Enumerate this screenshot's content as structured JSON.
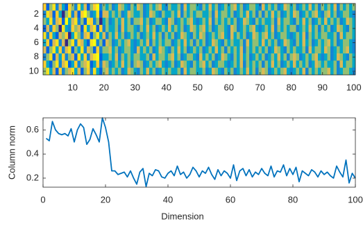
{
  "chart_data": [
    {
      "type": "heatmap",
      "colormap": [
        "#352a87",
        "#0363e1",
        "#1485d4",
        "#06a7c6",
        "#38b99e",
        "#92bf73",
        "#d9ba56",
        "#fcce2e",
        "#f5e21f",
        "#f9fb0e"
      ],
      "xlim": [
        0.5,
        100.5
      ],
      "ylim": [
        0.5,
        10.5
      ],
      "y_reversed": true,
      "xticks": [
        10,
        20,
        30,
        40,
        50,
        60,
        70,
        80,
        90,
        100
      ],
      "yticks": [
        2,
        4,
        6,
        8,
        10
      ],
      "values": [
        [
          7,
          2,
          5,
          8,
          3,
          6,
          4,
          2,
          7,
          5,
          3,
          8,
          4,
          6,
          2,
          5,
          7,
          9,
          3,
          5,
          4,
          5,
          3,
          4,
          6,
          5,
          4,
          3,
          5,
          4,
          6,
          5,
          3,
          4,
          5,
          4,
          5,
          6,
          4,
          3,
          5,
          4,
          4,
          5,
          3,
          6,
          4,
          5,
          5,
          4,
          3,
          5,
          4,
          6,
          4,
          5,
          3,
          4,
          5,
          4,
          5,
          6,
          4,
          5,
          3,
          4,
          5,
          5,
          4,
          3,
          6,
          4,
          5,
          4,
          5,
          3,
          4,
          6,
          5,
          4,
          5,
          3,
          4,
          5,
          4,
          6,
          4,
          5,
          3,
          5,
          4,
          5,
          4,
          6,
          3,
          5,
          4,
          5,
          4,
          5
        ],
        [
          3,
          8,
          6,
          2,
          7,
          4,
          1,
          5,
          8,
          3,
          6,
          2,
          7,
          9,
          5,
          3,
          4,
          8,
          2,
          6,
          6,
          4,
          5,
          4,
          5,
          3,
          4,
          6,
          5,
          4,
          4,
          5,
          3,
          4,
          6,
          5,
          4,
          3,
          5,
          4,
          4,
          5,
          4,
          6,
          3,
          5,
          4,
          5,
          4,
          5,
          5,
          4,
          4,
          5,
          3,
          6,
          4,
          5,
          5,
          4,
          5,
          3,
          4,
          5,
          4,
          6,
          4,
          5,
          3,
          5,
          3,
          5,
          4,
          6,
          4,
          5,
          3,
          4,
          5,
          4,
          6,
          5,
          3,
          4,
          5,
          4,
          5,
          6,
          4,
          3,
          5,
          6,
          4,
          5,
          3,
          4,
          5,
          5,
          4,
          3
        ],
        [
          5,
          4,
          8,
          3,
          6,
          7,
          2,
          9,
          4,
          6,
          8,
          3,
          5,
          2,
          8,
          7,
          3,
          5,
          1,
          4,
          5,
          3,
          4,
          5,
          4,
          6,
          4,
          5,
          3,
          5,
          5,
          6,
          4,
          5,
          3,
          4,
          5,
          5,
          4,
          3,
          6,
          5,
          3,
          4,
          5,
          4,
          5,
          6,
          4,
          3,
          4,
          5,
          4,
          6,
          3,
          5,
          4,
          5,
          4,
          5,
          4,
          5,
          3,
          4,
          6,
          5,
          4,
          3,
          5,
          4,
          5,
          4,
          4,
          5,
          3,
          6,
          4,
          5,
          5,
          4,
          3,
          5,
          4,
          6,
          4,
          5,
          3,
          4,
          5,
          4,
          6,
          4,
          5,
          4,
          5,
          3,
          4,
          6,
          5,
          4
        ],
        [
          2,
          6,
          3,
          7,
          5,
          1,
          8,
          4,
          3,
          7,
          5,
          6,
          2,
          8,
          4,
          6,
          8,
          2,
          7,
          3,
          5,
          4,
          4,
          5,
          3,
          6,
          4,
          5,
          5,
          4,
          3,
          5,
          4,
          6,
          4,
          5,
          3,
          4,
          5,
          4,
          6,
          4,
          5,
          4,
          5,
          3,
          4,
          6,
          5,
          4,
          5,
          6,
          4,
          5,
          3,
          4,
          5,
          5,
          4,
          3,
          6,
          5,
          3,
          4,
          5,
          4,
          5,
          6,
          4,
          3,
          4,
          5,
          4,
          6,
          3,
          5,
          4,
          5,
          4,
          5,
          5,
          3,
          4,
          5,
          4,
          6,
          4,
          5,
          3,
          5,
          4,
          5,
          3,
          4,
          6,
          5,
          4,
          3,
          5,
          4
        ],
        [
          8,
          3,
          7,
          4,
          2,
          6,
          5,
          7,
          1,
          4,
          8,
          5,
          3,
          6,
          7,
          2,
          5,
          8,
          4,
          6,
          3,
          5,
          4,
          6,
          4,
          5,
          3,
          4,
          5,
          4,
          5,
          3,
          4,
          5,
          4,
          6,
          4,
          5,
          3,
          5,
          4,
          5,
          3,
          4,
          6,
          5,
          4,
          3,
          5,
          4,
          6,
          5,
          3,
          4,
          5,
          4,
          5,
          6,
          4,
          3,
          6,
          4,
          5,
          4,
          5,
          3,
          4,
          6,
          5,
          4,
          5,
          6,
          4,
          5,
          3,
          4,
          5,
          5,
          4,
          3,
          4,
          5,
          4,
          6,
          3,
          5,
          4,
          5,
          4,
          5,
          5,
          4,
          4,
          5,
          3,
          6,
          4,
          5,
          5,
          4
        ],
        [
          4,
          7,
          2,
          6,
          8,
          3,
          6,
          1,
          5,
          8,
          3,
          7,
          6,
          4,
          2,
          8,
          9,
          3,
          5,
          2,
          6,
          5,
          3,
          4,
          5,
          4,
          5,
          6,
          4,
          3,
          4,
          5,
          4,
          6,
          3,
          5,
          4,
          5,
          4,
          5,
          5,
          3,
          4,
          5,
          4,
          6,
          4,
          5,
          3,
          5,
          4,
          5,
          3,
          4,
          6,
          5,
          4,
          3,
          5,
          4,
          5,
          4,
          4,
          5,
          3,
          6,
          4,
          5,
          5,
          4,
          6,
          4,
          5,
          4,
          5,
          3,
          4,
          6,
          5,
          4,
          3,
          5,
          4,
          6,
          4,
          5,
          3,
          4,
          5,
          4,
          5,
          6,
          4,
          5,
          3,
          4,
          5,
          5,
          4,
          3
        ],
        [
          6,
          2,
          5,
          8,
          4,
          7,
          3,
          6,
          8,
          2,
          5,
          4,
          8,
          3,
          6,
          5,
          2,
          7,
          3,
          5,
          5,
          6,
          4,
          5,
          3,
          4,
          5,
          5,
          4,
          3,
          6,
          4,
          5,
          4,
          5,
          3,
          4,
          6,
          5,
          4,
          3,
          5,
          4,
          6,
          4,
          5,
          3,
          4,
          5,
          4,
          5,
          3,
          4,
          5,
          4,
          6,
          4,
          5,
          3,
          5,
          4,
          5,
          4,
          6,
          3,
          5,
          4,
          5,
          4,
          5,
          4,
          5,
          3,
          4,
          6,
          5,
          4,
          3,
          5,
          4,
          5,
          4,
          4,
          5,
          3,
          6,
          4,
          5,
          5,
          4,
          6,
          5,
          3,
          4,
          5,
          4,
          5,
          6,
          4,
          3
        ],
        [
          3,
          5,
          8,
          2,
          6,
          4,
          7,
          3,
          5,
          6,
          2,
          8,
          4,
          7,
          3,
          6,
          8,
          9,
          2,
          4,
          4,
          5,
          4,
          6,
          3,
          5,
          4,
          5,
          4,
          5,
          5,
          4,
          4,
          5,
          3,
          6,
          4,
          5,
          5,
          4,
          5,
          6,
          4,
          5,
          3,
          4,
          5,
          5,
          4,
          3,
          6,
          4,
          5,
          4,
          5,
          3,
          4,
          6,
          5,
          4,
          3,
          5,
          4,
          6,
          4,
          5,
          3,
          4,
          5,
          4,
          5,
          3,
          4,
          5,
          4,
          6,
          4,
          5,
          3,
          5,
          6,
          5,
          3,
          4,
          5,
          4,
          5,
          6,
          4,
          3,
          4,
          5,
          3,
          4,
          6,
          5,
          4,
          3,
          5,
          4
        ],
        [
          7,
          4,
          2,
          5,
          8,
          3,
          6,
          8,
          2,
          4,
          7,
          3,
          5,
          6,
          8,
          2,
          4,
          7,
          3,
          6,
          5,
          3,
          4,
          5,
          4,
          6,
          4,
          5,
          3,
          5,
          6,
          5,
          3,
          4,
          5,
          4,
          5,
          6,
          4,
          3,
          4,
          5,
          3,
          4,
          6,
          5,
          4,
          3,
          5,
          4,
          5,
          6,
          4,
          5,
          3,
          4,
          5,
          5,
          4,
          3,
          4,
          5,
          4,
          6,
          3,
          5,
          4,
          5,
          4,
          5,
          3,
          5,
          4,
          6,
          4,
          5,
          3,
          4,
          5,
          4,
          6,
          4,
          5,
          4,
          5,
          3,
          4,
          6,
          5,
          4,
          5,
          4,
          4,
          5,
          3,
          6,
          4,
          5,
          5,
          4
        ],
        [
          5,
          8,
          4,
          6,
          2,
          7,
          3,
          5,
          6,
          8,
          4,
          6,
          2,
          5,
          7,
          3,
          8,
          4,
          2,
          5,
          6,
          4,
          5,
          4,
          5,
          3,
          4,
          6,
          5,
          4,
          3,
          5,
          4,
          6,
          4,
          5,
          3,
          4,
          5,
          4,
          5,
          4,
          4,
          5,
          3,
          6,
          4,
          5,
          5,
          4,
          4,
          5,
          3,
          4,
          6,
          5,
          4,
          3,
          5,
          4,
          5,
          3,
          4,
          5,
          4,
          6,
          4,
          5,
          3,
          5,
          6,
          5,
          3,
          4,
          5,
          4,
          5,
          6,
          4,
          3,
          4,
          5,
          4,
          6,
          3,
          5,
          4,
          5,
          4,
          5,
          5,
          6,
          4,
          5,
          3,
          4,
          5,
          5,
          4,
          3
        ]
      ]
    },
    {
      "type": "line",
      "color": "#0072bd",
      "xlabel": "Dimension",
      "ylabel": "Column norm",
      "xlim": [
        0,
        100
      ],
      "ylim": [
        0.125,
        0.7
      ],
      "xticks": [
        0,
        20,
        40,
        60,
        80,
        100
      ],
      "yticks": [
        0.2,
        0.4,
        0.6
      ],
      "x": [
        1,
        2,
        3,
        4,
        5,
        6,
        7,
        8,
        9,
        10,
        11,
        12,
        13,
        14,
        15,
        16,
        17,
        18,
        19,
        20,
        21,
        22,
        23,
        24,
        25,
        26,
        27,
        28,
        29,
        30,
        31,
        32,
        33,
        34,
        35,
        36,
        37,
        38,
        39,
        40,
        41,
        42,
        43,
        44,
        45,
        46,
        47,
        48,
        49,
        50,
        51,
        52,
        53,
        54,
        55,
        56,
        57,
        58,
        59,
        60,
        61,
        62,
        63,
        64,
        65,
        66,
        67,
        68,
        69,
        70,
        71,
        72,
        73,
        74,
        75,
        76,
        77,
        78,
        79,
        80,
        81,
        82,
        83,
        84,
        85,
        86,
        87,
        88,
        89,
        90,
        91,
        92,
        93,
        94,
        95,
        96,
        97,
        98,
        99,
        100
      ],
      "values": [
        0.53,
        0.51,
        0.67,
        0.6,
        0.57,
        0.56,
        0.57,
        0.55,
        0.61,
        0.5,
        0.6,
        0.65,
        0.62,
        0.48,
        0.52,
        0.61,
        0.56,
        0.5,
        0.7,
        0.62,
        0.5,
        0.26,
        0.26,
        0.23,
        0.24,
        0.25,
        0.21,
        0.26,
        0.2,
        0.15,
        0.25,
        0.28,
        0.13,
        0.24,
        0.22,
        0.27,
        0.26,
        0.21,
        0.2,
        0.24,
        0.26,
        0.22,
        0.3,
        0.23,
        0.25,
        0.2,
        0.23,
        0.29,
        0.26,
        0.21,
        0.26,
        0.24,
        0.29,
        0.23,
        0.19,
        0.27,
        0.22,
        0.26,
        0.24,
        0.2,
        0.31,
        0.18,
        0.26,
        0.28,
        0.22,
        0.27,
        0.21,
        0.25,
        0.23,
        0.28,
        0.24,
        0.22,
        0.3,
        0.21,
        0.26,
        0.25,
        0.31,
        0.22,
        0.28,
        0.23,
        0.29,
        0.17,
        0.26,
        0.24,
        0.22,
        0.27,
        0.25,
        0.21,
        0.26,
        0.23,
        0.25,
        0.22,
        0.2,
        0.3,
        0.25,
        0.21,
        0.35,
        0.16,
        0.24,
        0.2
      ]
    }
  ]
}
